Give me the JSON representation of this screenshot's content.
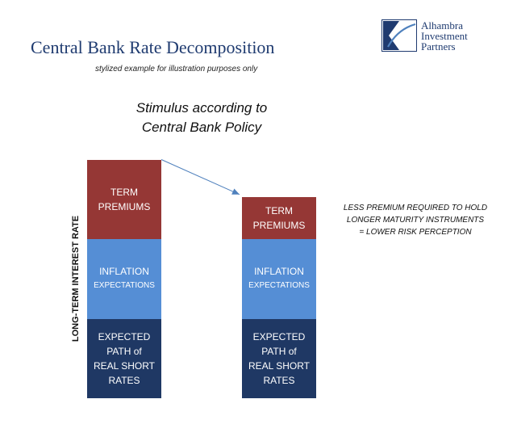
{
  "header": {
    "title": "Central Bank Rate Decomposition",
    "subtitle": "stylized example for illustration purposes only"
  },
  "logo": {
    "lines": [
      "Alhambra",
      "Investment",
      "Partners"
    ]
  },
  "annotations": {
    "stimulus_line1": "Stimulus according to",
    "stimulus_line2": "Central Bank Policy",
    "note_line1": "LESS PREMIUM REQUIRED TO HOLD",
    "note_line2": "LONGER MATURITY INSTRUMENTS",
    "note_line3": "= LOWER RISK PERCEPTION"
  },
  "colors": {
    "term": "#953735",
    "inflation": "#558ed5",
    "expected": "#1f3864",
    "title": "#1f3b70",
    "arrow": "#4f81bd"
  },
  "chart_data": {
    "type": "bar",
    "stacked": true,
    "title": "Central Bank Rate Decomposition",
    "subtitle": "stylized example for illustration purposes only",
    "ylabel": "LONG-TERM INTEREST RATE",
    "xlabel": "",
    "categories": [
      "",
      ""
    ],
    "series": [
      {
        "name": "EXPECTED PATH of REAL SHORT RATES",
        "key": "expected",
        "values": [
          1.0,
          1.0
        ],
        "label_lines": [
          "EXPECTED",
          "PATH of",
          "REAL SHORT",
          "RATES"
        ]
      },
      {
        "name": "INFLATION EXPECTATIONS",
        "key": "inflation",
        "values": [
          1.0,
          1.0
        ],
        "label_lines": [
          "INFLATION",
          "EXPECTATIONS"
        ]
      },
      {
        "name": "TERM PREMIUMS",
        "key": "term",
        "values": [
          1.0,
          0.53
        ],
        "label_lines": [
          "TERM",
          "PREMIUMS"
        ]
      }
    ],
    "ylim": [
      0,
      3.0
    ],
    "grid": false,
    "legend": "none"
  }
}
